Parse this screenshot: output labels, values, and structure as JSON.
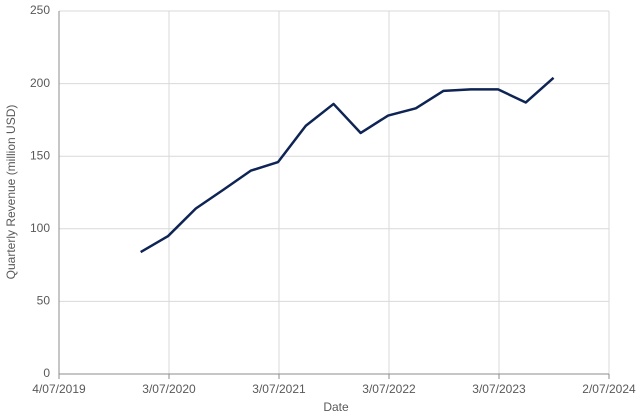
{
  "chart_data": {
    "type": "line",
    "x_label": "Date",
    "y_label": "Quarterly Revenue (million USD)",
    "x": [
      "31/03/2020",
      "30/06/2020",
      "30/09/2020",
      "31/12/2020",
      "31/03/2021",
      "30/06/2021",
      "30/09/2021",
      "31/12/2021",
      "31/03/2022",
      "30/06/2022",
      "30/09/2022",
      "31/12/2022",
      "31/03/2023",
      "30/06/2023",
      "30/09/2023",
      "31/12/2023"
    ],
    "series": [
      {
        "name": "Quarterly Revenue",
        "color": "#0e2454",
        "values": [
          84,
          95,
          114,
          127,
          140,
          146,
          171,
          186,
          166,
          178,
          183,
          195,
          196,
          196,
          187,
          204
        ]
      }
    ],
    "xlim": [
      "4/07/2019",
      "2/07/2024"
    ],
    "xticks": [
      "4/07/2019",
      "3/07/2020",
      "3/07/2021",
      "3/07/2022",
      "3/07/2023",
      "2/07/2024"
    ],
    "ylim": [
      0,
      250
    ],
    "yticks": [
      0,
      50,
      100,
      150,
      200,
      250
    ],
    "grid": true
  }
}
